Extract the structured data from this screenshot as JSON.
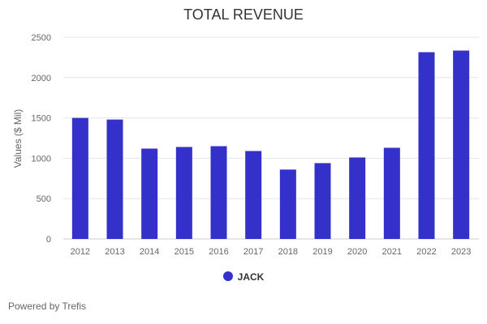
{
  "chart_data": {
    "type": "bar",
    "title": "TOTAL REVENUE",
    "xlabel": "",
    "ylabel": "Values ($ Mil)",
    "ylim": [
      0,
      2500
    ],
    "yticks": [
      0,
      500,
      1000,
      1500,
      2000,
      2500
    ],
    "grid": true,
    "legend_position": "bottom",
    "categories": [
      "2012",
      "2013",
      "2014",
      "2015",
      "2016",
      "2017",
      "2018",
      "2019",
      "2020",
      "2021",
      "2022",
      "2023"
    ],
    "series": [
      {
        "name": "JACK",
        "color": "#3431CA",
        "values": [
          1500,
          1480,
          1120,
          1140,
          1150,
          1090,
          860,
          940,
          1010,
          1130,
          2315,
          2335
        ]
      }
    ]
  },
  "footer": "Powered by Trefis"
}
